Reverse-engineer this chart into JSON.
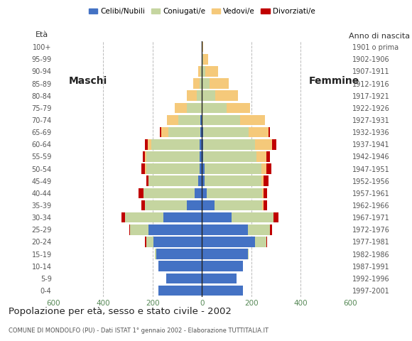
{
  "age_groups": [
    "0-4",
    "5-9",
    "10-14",
    "15-19",
    "20-24",
    "25-29",
    "30-34",
    "35-39",
    "40-44",
    "45-49",
    "50-54",
    "55-59",
    "60-64",
    "65-69",
    "70-74",
    "75-79",
    "80-84",
    "85-89",
    "90-94",
    "95-99",
    "100+"
  ],
  "birth_years": [
    "1997-2001",
    "1992-1996",
    "1987-1991",
    "1982-1986",
    "1977-1981",
    "1972-1976",
    "1967-1971",
    "1962-1966",
    "1957-1961",
    "1952-1956",
    "1947-1951",
    "1942-1946",
    "1937-1941",
    "1932-1936",
    "1927-1931",
    "1922-1926",
    "1917-1921",
    "1912-1916",
    "1907-1911",
    "1902-1906",
    "1901 o prima"
  ],
  "male": {
    "celibe": [
      175,
      145,
      175,
      185,
      195,
      215,
      155,
      60,
      30,
      15,
      10,
      10,
      10,
      5,
      5,
      0,
      0,
      0,
      0,
      0,
      0
    ],
    "coniugato": [
      0,
      0,
      0,
      5,
      30,
      75,
      155,
      170,
      205,
      200,
      215,
      215,
      195,
      130,
      90,
      60,
      20,
      10,
      5,
      0,
      0
    ],
    "vedovo": [
      0,
      0,
      0,
      0,
      0,
      0,
      0,
      0,
      0,
      0,
      5,
      5,
      15,
      30,
      45,
      50,
      40,
      25,
      10,
      0,
      0
    ],
    "divorziato": [
      0,
      0,
      0,
      0,
      5,
      5,
      15,
      15,
      20,
      10,
      15,
      10,
      10,
      5,
      0,
      0,
      0,
      0,
      0,
      0,
      0
    ]
  },
  "female": {
    "celibe": [
      165,
      140,
      165,
      185,
      215,
      185,
      120,
      50,
      20,
      10,
      10,
      5,
      5,
      5,
      0,
      0,
      0,
      0,
      0,
      0,
      0
    ],
    "coniugato": [
      0,
      0,
      0,
      5,
      45,
      90,
      170,
      195,
      225,
      230,
      230,
      215,
      210,
      185,
      155,
      100,
      55,
      30,
      15,
      5,
      0
    ],
    "vedovo": [
      0,
      0,
      0,
      0,
      0,
      0,
      0,
      5,
      5,
      10,
      20,
      40,
      70,
      80,
      100,
      95,
      90,
      80,
      50,
      20,
      5
    ],
    "divorziato": [
      0,
      0,
      0,
      0,
      5,
      10,
      20,
      15,
      15,
      20,
      20,
      15,
      15,
      5,
      0,
      0,
      0,
      0,
      0,
      0,
      0
    ]
  },
  "colors": {
    "celibe": "#4472c4",
    "coniugato": "#c5d5a0",
    "vedovo": "#f5c97a",
    "divorziato": "#c00000"
  },
  "legend_labels": [
    "Celibi/Nubili",
    "Coniugati/e",
    "Vedovi/e",
    "Divorziati/e"
  ],
  "title": "Popolazione per età, sesso e stato civile - 2002",
  "subtitle": "COMUNE DI MONDOLFO (PU) - Dati ISTAT 1° gennaio 2002 - Elaborazione TUTTITALIA.IT",
  "xlabel_left": "Maschi",
  "xlabel_right": "Femmine",
  "ylabel_left": "Età",
  "ylabel_right": "Anno di nascita",
  "xlim": 600,
  "bg_color": "#ffffff",
  "grid_color": "#bbbbbb",
  "bar_height": 0.85
}
